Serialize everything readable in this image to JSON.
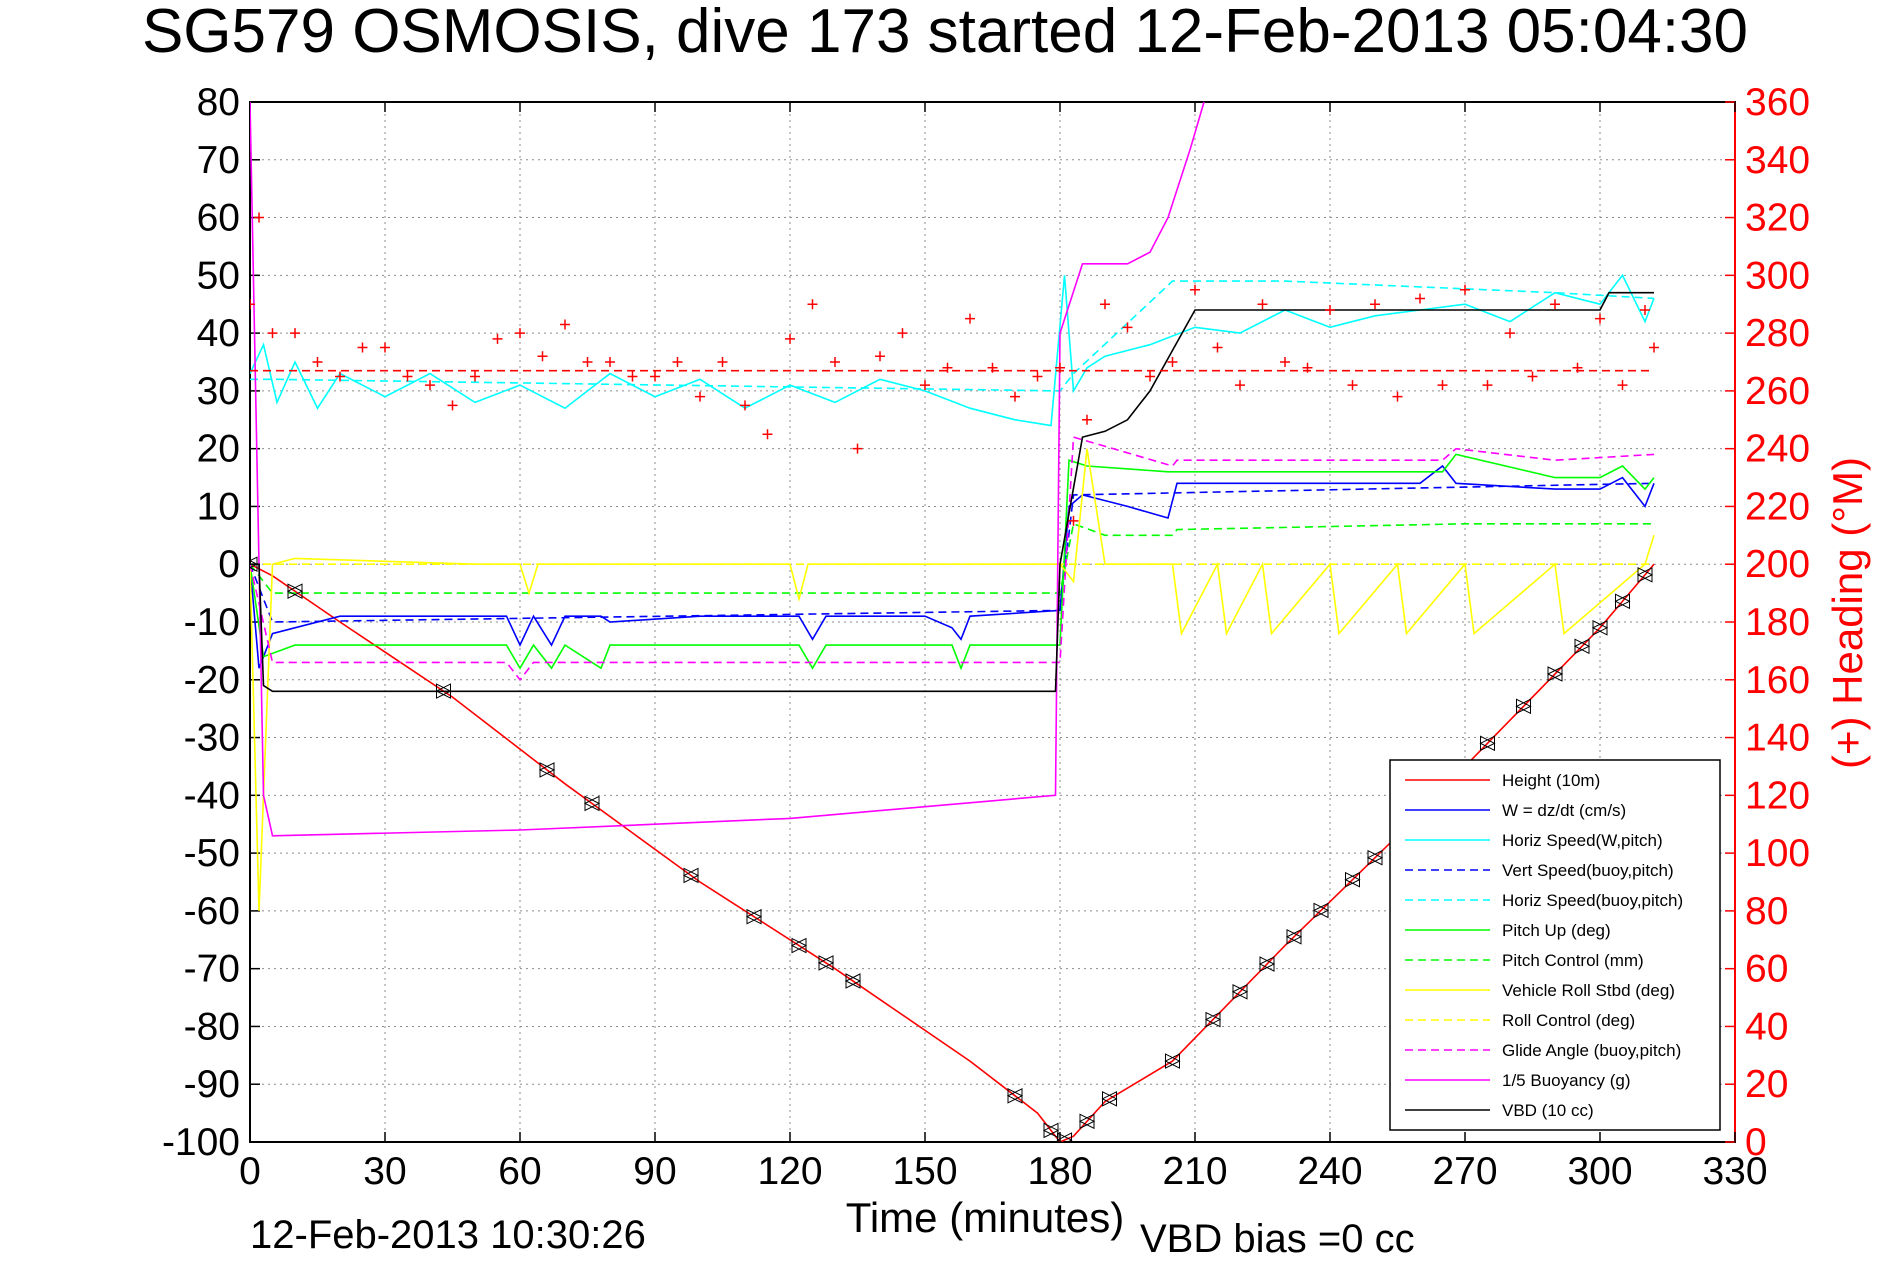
{
  "figure": {
    "title": "SG579 OSMOSIS, dive 173 started 12-Feb-2013 05:04:30",
    "timestamp": "12-Feb-2013 10:30:26",
    "vbd_bias": "VBD bias =0 cc"
  },
  "chart_data": {
    "type": "line",
    "xlabel": "Time (minutes)",
    "ylabel": "",
    "y2label": "(+) Heading (°M)",
    "xlim": [
      0,
      330
    ],
    "ylim": [
      -100,
      80
    ],
    "y2lim": [
      0,
      360
    ],
    "xticks": [
      "0",
      "30",
      "60",
      "90",
      "120",
      "150",
      "180",
      "210",
      "240",
      "270",
      "300",
      "330"
    ],
    "yticks": [
      "80",
      "70",
      "60",
      "50",
      "40",
      "30",
      "20",
      "10",
      "0",
      "-10",
      "-20",
      "-30",
      "-40",
      "-50",
      "-60",
      "-70",
      "-80",
      "-90",
      "-100"
    ],
    "y2ticks": [
      "360",
      "340",
      "320",
      "300",
      "280",
      "260",
      "240",
      "220",
      "200",
      "180",
      "160",
      "140",
      "120",
      "100",
      "80",
      "60",
      "40",
      "20",
      "0"
    ],
    "grid": true,
    "legend_position": "bottom-right",
    "colors": {
      "red": "#ff0000",
      "blue": "#0000ff",
      "cyan": "#00ffff",
      "green": "#00ff00",
      "yellow": "#ffff00",
      "magenta": "#ff00ff",
      "black": "#000000"
    },
    "series": [
      {
        "name": "Height (10m)",
        "color": "#ff0000",
        "style": "solid",
        "x": [
          0,
          5,
          20,
          45,
          70,
          100,
          130,
          160,
          175,
          180,
          183,
          190,
          205,
          230,
          255,
          280,
          300,
          312
        ],
        "y": [
          0,
          -2,
          -10,
          -23,
          -38,
          -55,
          -70,
          -86,
          -95,
          -100,
          -99,
          -93,
          -86,
          -66,
          -47,
          -27,
          -11,
          0
        ]
      },
      {
        "name": "W = dz/dt (cm/s)",
        "color": "#0000ff",
        "style": "solid",
        "x": [
          0,
          2,
          5,
          20,
          40,
          57,
          60,
          63,
          67,
          70,
          78,
          80,
          100,
          122,
          125,
          128,
          150,
          156,
          158,
          160,
          180,
          182,
          185,
          195,
          204,
          206,
          210,
          230,
          260,
          265,
          268,
          290,
          300,
          305,
          310,
          312
        ],
        "y": [
          0,
          -18,
          -12,
          -9,
          -9,
          -9,
          -14,
          -9,
          -14,
          -9,
          -9,
          -10,
          -9,
          -9,
          -13,
          -9,
          -9,
          -11,
          -13,
          -9,
          -8,
          10,
          12,
          10,
          8,
          14,
          14,
          14,
          14,
          17,
          14,
          13,
          13,
          15,
          10,
          14
        ]
      },
      {
        "name": "Horiz Speed(W,pitch)",
        "color": "#00ffff",
        "style": "solid",
        "x": [
          0,
          3,
          6,
          10,
          15,
          20,
          30,
          40,
          50,
          60,
          70,
          80,
          90,
          100,
          110,
          120,
          130,
          140,
          150,
          160,
          170,
          178,
          181,
          183,
          186,
          190,
          200,
          210,
          220,
          230,
          240,
          250,
          260,
          270,
          280,
          290,
          300,
          305,
          310,
          312
        ],
        "y": [
          33,
          38,
          28,
          35,
          27,
          33,
          29,
          33,
          28,
          31,
          27,
          33,
          29,
          32,
          27,
          31,
          28,
          32,
          30,
          27,
          25,
          24,
          50,
          30,
          34,
          36,
          38,
          41,
          40,
          44,
          41,
          43,
          44,
          45,
          42,
          47,
          45,
          50,
          42,
          46
        ]
      },
      {
        "name": "Vert Speed(buoy,pitch)",
        "color": "#0000ff",
        "style": "dashed",
        "x": [
          0,
          5,
          180,
          183,
          312
        ],
        "y": [
          0,
          -10,
          -8,
          12,
          14
        ]
      },
      {
        "name": "Horiz Speed(buoy,pitch)",
        "color": "#00ffff",
        "style": "dashed",
        "x": [
          0,
          5,
          180,
          183,
          205,
          230,
          260,
          290,
          312
        ],
        "y": [
          32,
          32,
          30,
          33,
          49,
          49,
          48,
          47,
          46
        ]
      },
      {
        "name": "Pitch Up (deg)",
        "color": "#00ff00",
        "style": "solid",
        "x": [
          0,
          3,
          10,
          57,
          60,
          63,
          67,
          70,
          78,
          80,
          122,
          125,
          128,
          156,
          158,
          160,
          180,
          182,
          186,
          204,
          206,
          230,
          265,
          268,
          290,
          300,
          305,
          310,
          312
        ],
        "y": [
          0,
          -16,
          -14,
          -14,
          -18,
          -14,
          -18,
          -14,
          -18,
          -14,
          -14,
          -18,
          -14,
          -14,
          -18,
          -14,
          -14,
          18,
          17,
          16,
          16,
          16,
          16,
          19,
          15,
          15,
          17,
          13,
          15
        ]
      },
      {
        "name": "Pitch Control (mm)",
        "color": "#00ff00",
        "style": "dashed",
        "x": [
          0,
          5,
          180,
          183,
          190,
          205,
          206,
          270,
          312
        ],
        "y": [
          0,
          -5,
          -5,
          7,
          5,
          5,
          6,
          7,
          7
        ]
      },
      {
        "name": "Vehicle Roll Stbd (deg)",
        "color": "#ffff00",
        "style": "solid",
        "x": [
          0,
          2,
          5,
          10,
          50,
          60,
          62,
          64,
          120,
          122,
          124,
          170,
          180,
          183,
          186,
          190,
          205,
          207,
          215,
          217,
          225,
          227,
          240,
          242,
          255,
          257,
          270,
          272,
          290,
          292,
          310,
          312
        ],
        "y": [
          0,
          -60,
          0,
          1,
          0,
          0,
          -5,
          0,
          0,
          -6,
          0,
          0,
          0,
          -3,
          20,
          0,
          0,
          -12,
          0,
          -12,
          0,
          -12,
          0,
          -12,
          0,
          -12,
          0,
          -12,
          0,
          -12,
          0,
          5
        ]
      },
      {
        "name": "Roll Control (deg)",
        "color": "#ffff00",
        "style": "dashed",
        "x": [
          0,
          5,
          180,
          312
        ],
        "y": [
          0,
          0,
          0,
          0
        ]
      },
      {
        "name": "Glide Angle (buoy,pitch)",
        "color": "#ff00ff",
        "style": "dashed",
        "x": [
          0,
          5,
          57,
          60,
          63,
          180,
          183,
          205,
          206,
          265,
          268,
          290,
          312
        ],
        "y": [
          0,
          -17,
          -17,
          -20,
          -17,
          -17,
          22,
          17,
          18,
          18,
          20,
          18,
          19
        ]
      },
      {
        "name": "1/5 Buoyancy (g)",
        "color": "#ff00ff",
        "style": "solid",
        "x": [
          0,
          3,
          5,
          60,
          120,
          179,
          180,
          185,
          195,
          200,
          204,
          209,
          212
        ],
        "y": [
          80,
          -40,
          -47,
          -46,
          -44,
          -40,
          40,
          52,
          52,
          54,
          60,
          72,
          80
        ]
      },
      {
        "name": "VBD (10 cc)",
        "color": "#000000",
        "style": "solid",
        "x": [
          0,
          2,
          3,
          5,
          179,
          180,
          185,
          190,
          195,
          200,
          205,
          210,
          230,
          300,
          302,
          312
        ],
        "y": [
          0,
          0,
          -21,
          -22,
          -22,
          0,
          22,
          23,
          25,
          30,
          37,
          44,
          44,
          44,
          47,
          47
        ]
      },
      {
        "name": "(+) Heading",
        "color": "#ff0000",
        "style": "plus-markers",
        "axis": "right",
        "x": [
          0,
          2,
          5,
          10,
          15,
          20,
          25,
          30,
          35,
          40,
          45,
          50,
          55,
          60,
          65,
          70,
          75,
          80,
          85,
          90,
          95,
          100,
          105,
          110,
          115,
          120,
          125,
          130,
          135,
          140,
          145,
          150,
          155,
          160,
          165,
          170,
          175,
          180,
          183,
          186,
          190,
          195,
          200,
          205,
          210,
          215,
          220,
          225,
          230,
          235,
          240,
          245,
          250,
          255,
          260,
          265,
          270,
          275,
          280,
          285,
          290,
          295,
          300,
          305,
          310,
          312
        ],
        "y": [
          290,
          320,
          280,
          280,
          270,
          265,
          275,
          275,
          265,
          262,
          255,
          265,
          278,
          280,
          272,
          283,
          270,
          270,
          265,
          265,
          270,
          258,
          270,
          255,
          245,
          278,
          290,
          270,
          240,
          272,
          280,
          262,
          268,
          285,
          268,
          258,
          265,
          268,
          215,
          250,
          290,
          282,
          265,
          270,
          295,
          275,
          262,
          290,
          270,
          268,
          288,
          262,
          290,
          258,
          292,
          262,
          295,
          262,
          280,
          265,
          290,
          268,
          285,
          262,
          288,
          275
        ]
      },
      {
        "name": "heading-mean",
        "color": "#ff0000",
        "style": "dashed",
        "axis": "right",
        "x": [
          0,
          312
        ],
        "y": [
          267,
          267
        ]
      }
    ]
  }
}
